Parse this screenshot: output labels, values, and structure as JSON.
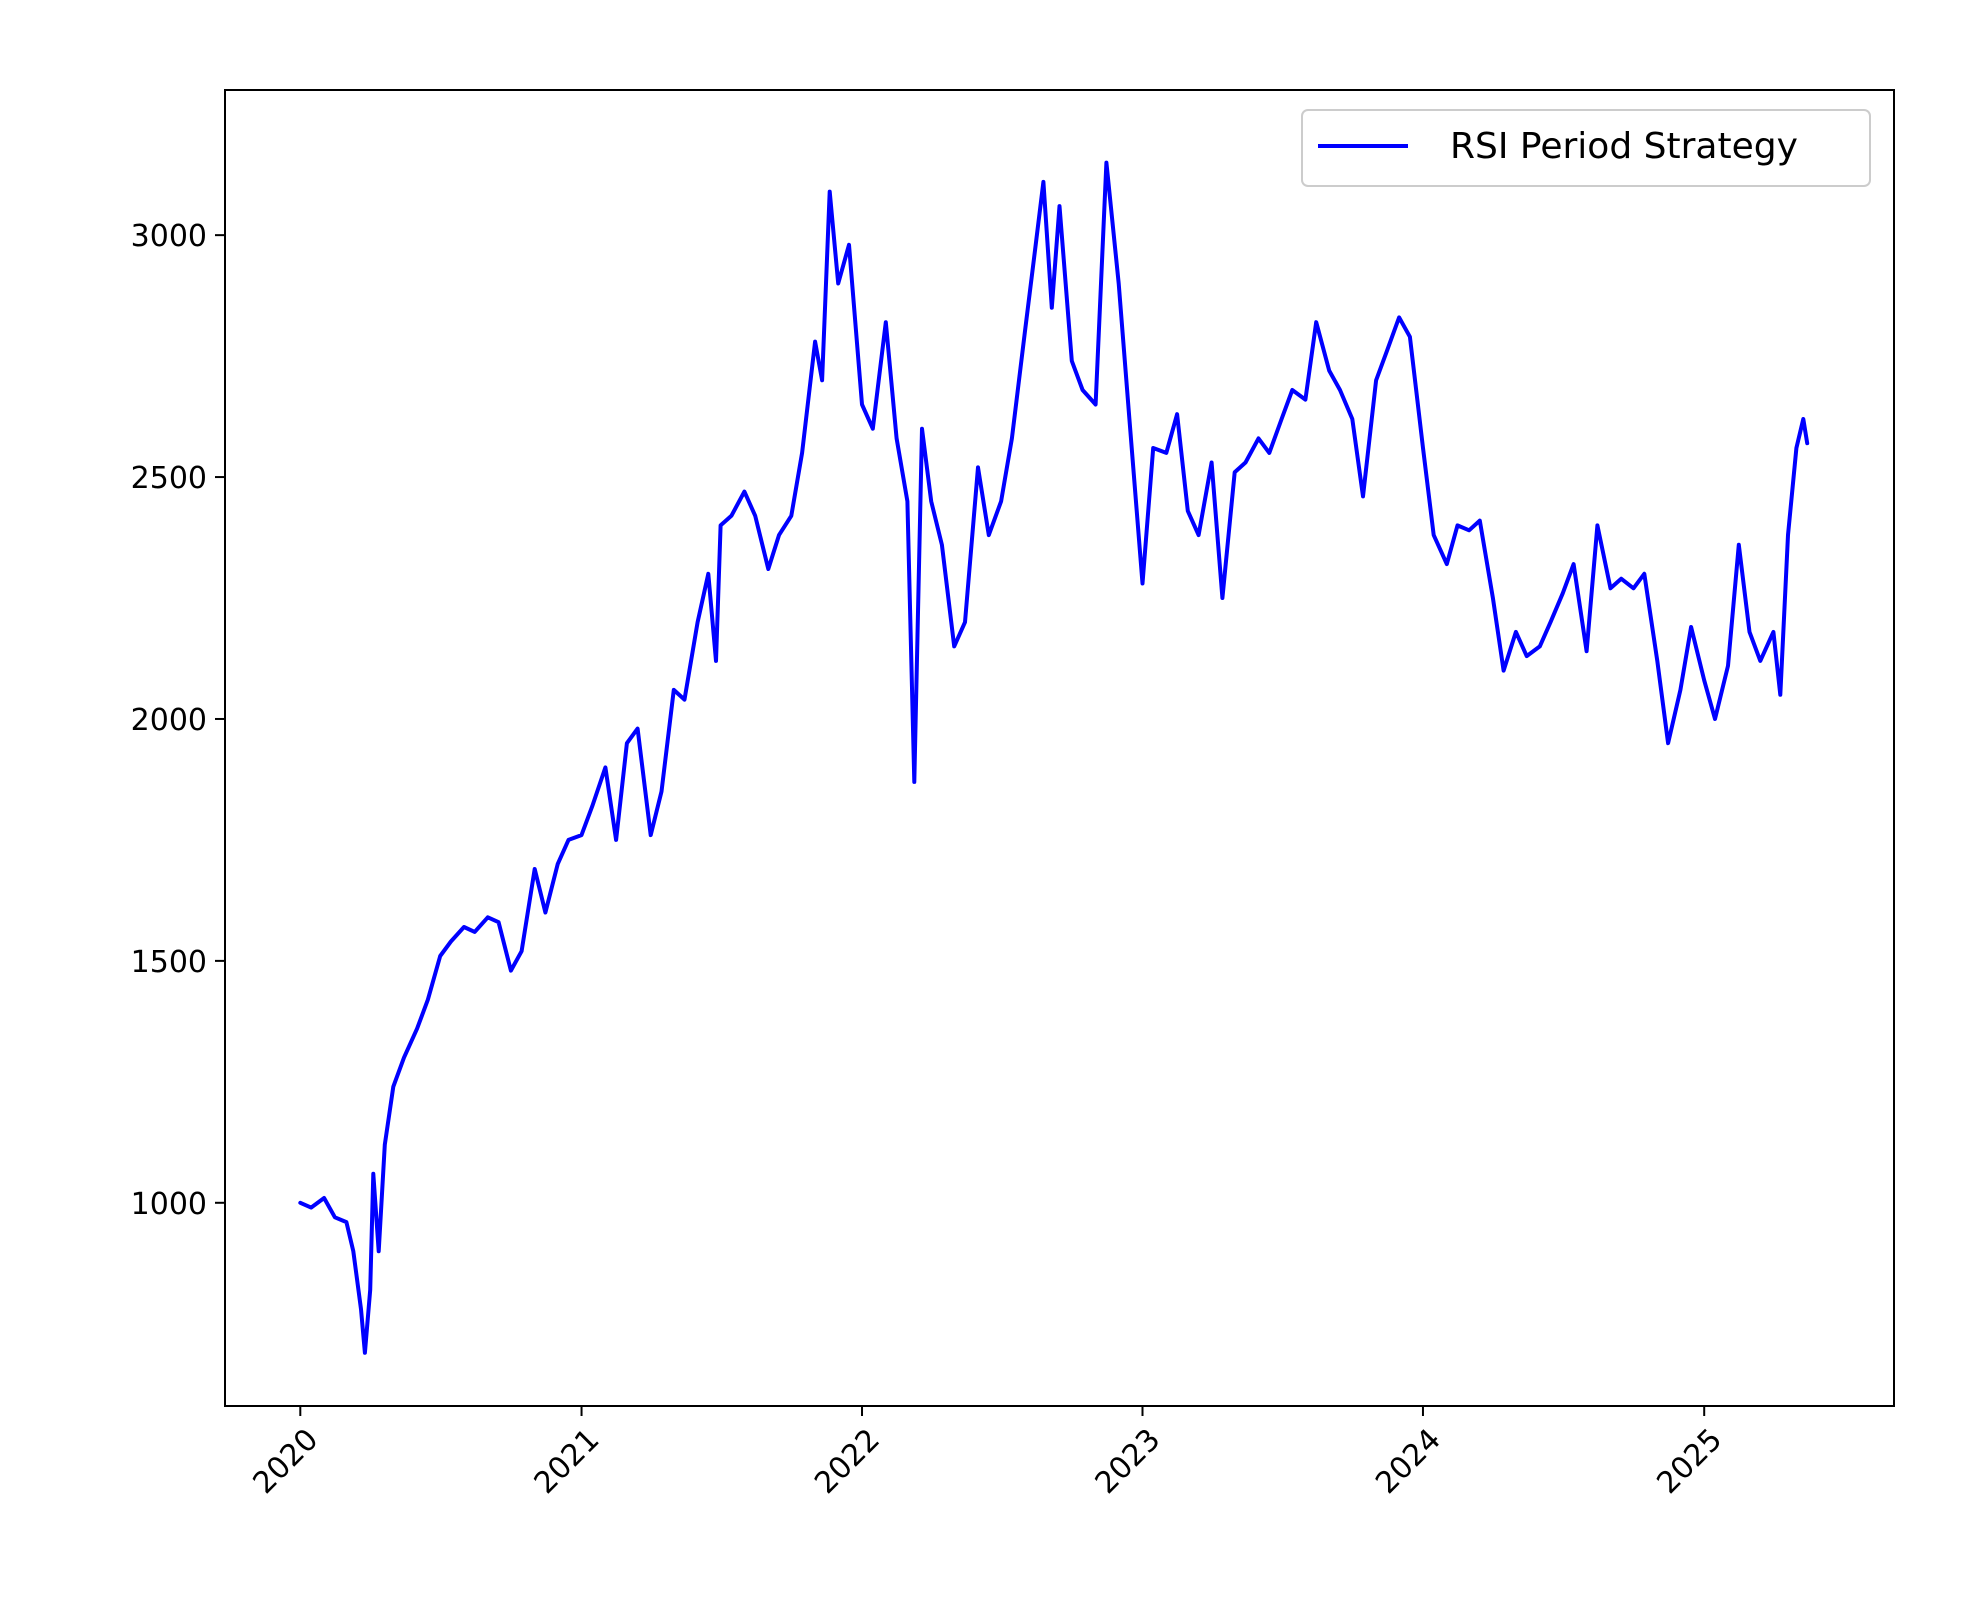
{
  "chart_data": {
    "type": "line",
    "title": "",
    "xlabel": "",
    "ylabel": "",
    "xlim": [
      "2019-09-25",
      "2025-09-05"
    ],
    "ylim": [
      580,
      3300
    ],
    "x_ticks": [
      "2020",
      "2021",
      "2022",
      "2023",
      "2024",
      "2025"
    ],
    "y_ticks": [
      1000,
      1500,
      2000,
      2500,
      3000
    ],
    "grid": false,
    "legend": {
      "position": "top-right"
    },
    "series": [
      {
        "name": "RSI Period Strategy",
        "color": "#0000ff",
        "points": [
          [
            "2020-01-01",
            1000
          ],
          [
            "2020-01-15",
            990
          ],
          [
            "2020-02-01",
            1010
          ],
          [
            "2020-02-15",
            970
          ],
          [
            "2020-03-01",
            960
          ],
          [
            "2020-03-10",
            900
          ],
          [
            "2020-03-20",
            780
          ],
          [
            "2020-03-25",
            690
          ],
          [
            "2020-04-01",
            820
          ],
          [
            "2020-04-05",
            1060
          ],
          [
            "2020-04-12",
            900
          ],
          [
            "2020-04-20",
            1120
          ],
          [
            "2020-05-01",
            1240
          ],
          [
            "2020-05-15",
            1300
          ],
          [
            "2020-06-01",
            1360
          ],
          [
            "2020-06-15",
            1420
          ],
          [
            "2020-07-01",
            1510
          ],
          [
            "2020-07-15",
            1540
          ],
          [
            "2020-08-01",
            1570
          ],
          [
            "2020-08-15",
            1560
          ],
          [
            "2020-09-01",
            1590
          ],
          [
            "2020-09-15",
            1580
          ],
          [
            "2020-10-01",
            1480
          ],
          [
            "2020-10-15",
            1520
          ],
          [
            "2020-11-01",
            1690
          ],
          [
            "2020-11-15",
            1600
          ],
          [
            "2020-12-01",
            1700
          ],
          [
            "2020-12-15",
            1750
          ],
          [
            "2021-01-01",
            1760
          ],
          [
            "2021-01-15",
            1820
          ],
          [
            "2021-02-01",
            1900
          ],
          [
            "2021-02-15",
            1750
          ],
          [
            "2021-03-01",
            1950
          ],
          [
            "2021-03-15",
            1980
          ],
          [
            "2021-04-01",
            1760
          ],
          [
            "2021-04-15",
            1850
          ],
          [
            "2021-05-01",
            2060
          ],
          [
            "2021-05-15",
            2040
          ],
          [
            "2021-06-01",
            2200
          ],
          [
            "2021-06-15",
            2300
          ],
          [
            "2021-06-25",
            2120
          ],
          [
            "2021-07-01",
            2400
          ],
          [
            "2021-07-15",
            2420
          ],
          [
            "2021-08-01",
            2470
          ],
          [
            "2021-08-15",
            2420
          ],
          [
            "2021-09-01",
            2310
          ],
          [
            "2021-09-15",
            2380
          ],
          [
            "2021-10-01",
            2420
          ],
          [
            "2021-10-15",
            2550
          ],
          [
            "2021-11-01",
            2780
          ],
          [
            "2021-11-10",
            2700
          ],
          [
            "2021-11-20",
            3090
          ],
          [
            "2021-12-01",
            2900
          ],
          [
            "2021-12-15",
            2980
          ],
          [
            "2022-01-01",
            2650
          ],
          [
            "2022-01-15",
            2600
          ],
          [
            "2022-02-01",
            2820
          ],
          [
            "2022-02-15",
            2580
          ],
          [
            "2022-03-01",
            2450
          ],
          [
            "2022-03-10",
            1870
          ],
          [
            "2022-03-20",
            2600
          ],
          [
            "2022-04-01",
            2450
          ],
          [
            "2022-04-15",
            2360
          ],
          [
            "2022-05-01",
            2150
          ],
          [
            "2022-05-15",
            2200
          ],
          [
            "2022-06-01",
            2520
          ],
          [
            "2022-06-15",
            2380
          ],
          [
            "2022-07-01",
            2450
          ],
          [
            "2022-07-15",
            2580
          ],
          [
            "2022-08-01",
            2800
          ],
          [
            "2022-08-15",
            2980
          ],
          [
            "2022-08-25",
            3110
          ],
          [
            "2022-09-05",
            2850
          ],
          [
            "2022-09-15",
            3060
          ],
          [
            "2022-10-01",
            2740
          ],
          [
            "2022-10-15",
            2680
          ],
          [
            "2022-11-01",
            2650
          ],
          [
            "2022-11-15",
            3150
          ],
          [
            "2022-12-01",
            2900
          ],
          [
            "2022-12-15",
            2620
          ],
          [
            "2023-01-01",
            2280
          ],
          [
            "2023-01-15",
            2560
          ],
          [
            "2023-02-01",
            2550
          ],
          [
            "2023-02-15",
            2630
          ],
          [
            "2023-03-01",
            2430
          ],
          [
            "2023-03-15",
            2380
          ],
          [
            "2023-04-01",
            2530
          ],
          [
            "2023-04-15",
            2250
          ],
          [
            "2023-05-01",
            2510
          ],
          [
            "2023-05-15",
            2530
          ],
          [
            "2023-06-01",
            2580
          ],
          [
            "2023-06-15",
            2550
          ],
          [
            "2023-07-01",
            2620
          ],
          [
            "2023-07-15",
            2680
          ],
          [
            "2023-08-01",
            2660
          ],
          [
            "2023-08-15",
            2820
          ],
          [
            "2023-09-01",
            2720
          ],
          [
            "2023-09-15",
            2680
          ],
          [
            "2023-10-01",
            2620
          ],
          [
            "2023-10-15",
            2460
          ],
          [
            "2023-11-01",
            2700
          ],
          [
            "2023-11-15",
            2760
          ],
          [
            "2023-12-01",
            2830
          ],
          [
            "2023-12-15",
            2790
          ],
          [
            "2024-01-01",
            2560
          ],
          [
            "2024-01-15",
            2380
          ],
          [
            "2024-02-01",
            2320
          ],
          [
            "2024-02-15",
            2400
          ],
          [
            "2024-03-01",
            2390
          ],
          [
            "2024-03-15",
            2410
          ],
          [
            "2024-04-01",
            2250
          ],
          [
            "2024-04-15",
            2100
          ],
          [
            "2024-05-01",
            2180
          ],
          [
            "2024-05-15",
            2130
          ],
          [
            "2024-06-01",
            2150
          ],
          [
            "2024-06-15",
            2200
          ],
          [
            "2024-07-01",
            2260
          ],
          [
            "2024-07-15",
            2320
          ],
          [
            "2024-08-01",
            2140
          ],
          [
            "2024-08-15",
            2400
          ],
          [
            "2024-09-01",
            2270
          ],
          [
            "2024-09-15",
            2290
          ],
          [
            "2024-10-01",
            2270
          ],
          [
            "2024-10-15",
            2300
          ],
          [
            "2024-11-01",
            2120
          ],
          [
            "2024-11-15",
            1950
          ],
          [
            "2024-12-01",
            2060
          ],
          [
            "2024-12-15",
            2190
          ],
          [
            "2025-01-01",
            2080
          ],
          [
            "2025-01-15",
            2000
          ],
          [
            "2025-02-01",
            2110
          ],
          [
            "2025-02-15",
            2360
          ],
          [
            "2025-03-01",
            2180
          ],
          [
            "2025-03-15",
            2120
          ],
          [
            "2025-04-01",
            2180
          ],
          [
            "2025-04-10",
            2050
          ],
          [
            "2025-04-20",
            2380
          ],
          [
            "2025-05-01",
            2560
          ],
          [
            "2025-05-10",
            2620
          ],
          [
            "2025-05-15",
            2570
          ]
        ]
      }
    ]
  }
}
